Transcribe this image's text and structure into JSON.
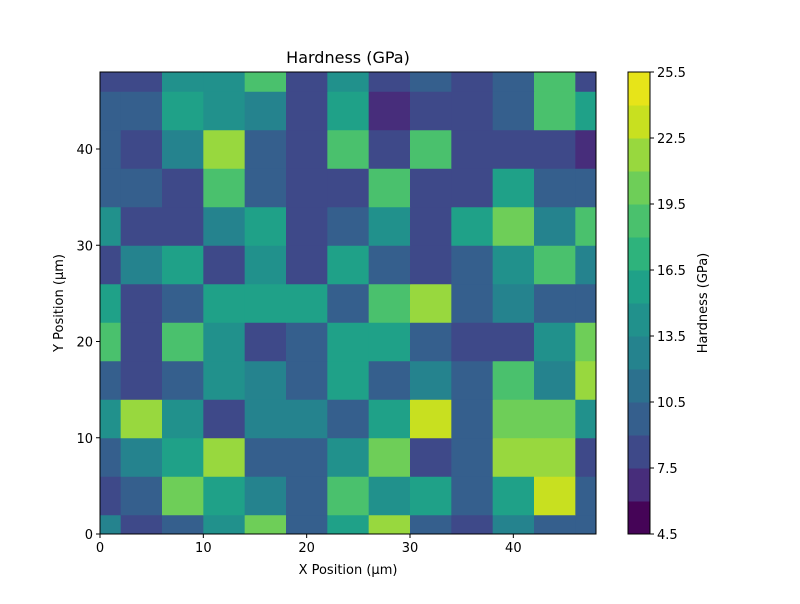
{
  "chart_data": {
    "type": "contourf",
    "title": "Hardness (GPa)",
    "x_label": "X Position (µm)",
    "y_label": "Y Position (µm)",
    "colorbar_label": "Hardness (GPa)",
    "x": [
      0,
      4,
      8,
      12,
      16,
      20,
      24,
      28,
      32,
      36,
      40,
      44,
      48
    ],
    "y": [
      0,
      4,
      8,
      12,
      16,
      20,
      24,
      28,
      32,
      36,
      40,
      44,
      48
    ],
    "z": [
      [
        12,
        8,
        9,
        14,
        20,
        10,
        16,
        22,
        10,
        8,
        12,
        9,
        9
      ],
      [
        8,
        9,
        20,
        16,
        12,
        10,
        18,
        14,
        16,
        9,
        16,
        23,
        9
      ],
      [
        10,
        12,
        16,
        21,
        10,
        9,
        14,
        20,
        8,
        10,
        22,
        22,
        8
      ],
      [
        14,
        22,
        14,
        8,
        12,
        12,
        9,
        16,
        23,
        10,
        20,
        20,
        14
      ],
      [
        9,
        8,
        10,
        14,
        12,
        10,
        16,
        9,
        12,
        9,
        19,
        13,
        22
      ],
      [
        18,
        8,
        18,
        14,
        8,
        10,
        16,
        16,
        10,
        8,
        8,
        14,
        20
      ],
      [
        16,
        8,
        10,
        16,
        16,
        16,
        10,
        18,
        22,
        9,
        12,
        10,
        10
      ],
      [
        8,
        12,
        16,
        8,
        14,
        8,
        16,
        10,
        8,
        9,
        14,
        18,
        12
      ],
      [
        14,
        8,
        8,
        12,
        16,
        8,
        10,
        14,
        8,
        16,
        20,
        12,
        18
      ],
      [
        9,
        9,
        8,
        18,
        10,
        8,
        8,
        18,
        8,
        8,
        16,
        10,
        9
      ],
      [
        9,
        8,
        12,
        22,
        10,
        8,
        18,
        8,
        18,
        8,
        8,
        8,
        6
      ],
      [
        9,
        10,
        16,
        14,
        12,
        8,
        16,
        6,
        8,
        8,
        10,
        18,
        16
      ],
      [
        8,
        8,
        14,
        14,
        18,
        8,
        14,
        8,
        9,
        8,
        9,
        18,
        8
      ]
    ],
    "levels": [
      4.5,
      6,
      7.5,
      9,
      10.5,
      12,
      13.5,
      15,
      16.5,
      18,
      19.5,
      21,
      22.5,
      24,
      25.5
    ],
    "colors": [
      "#450457",
      "#472d7b",
      "#3e4989",
      "#355f8d",
      "#2c718e",
      "#25838e",
      "#21918c",
      "#1fa188",
      "#2eb37c",
      "#4ac16d",
      "#6ece58",
      "#98d83e",
      "#c8e020",
      "#e7e419"
    ],
    "xlim": [
      0,
      48
    ],
    "ylim": [
      0,
      48
    ],
    "xticks": [
      0,
      10,
      20,
      30,
      40
    ],
    "yticks": [
      0,
      10,
      20,
      30,
      40
    ],
    "colorbar_ticks": [
      4.5,
      7.5,
      10.5,
      13.5,
      16.5,
      19.5,
      22.5,
      25.5
    ]
  }
}
